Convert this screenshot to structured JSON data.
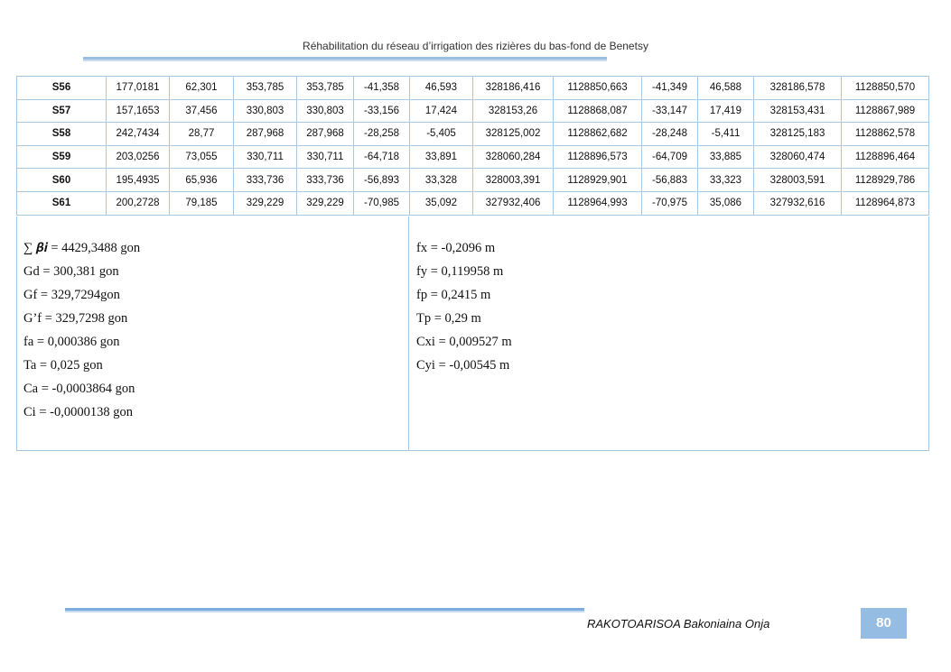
{
  "header": {
    "title": "Réhabilitation du réseau d’irrigation des rizières du bas-fond de Benetsy"
  },
  "table": {
    "rows": [
      [
        "S56",
        "177,0181",
        "62,301",
        "353,785",
        "353,785",
        "-41,358",
        "46,593",
        "328186,416",
        "1128850,663",
        "-41,349",
        "46,588",
        "328186,578",
        "1128850,570"
      ],
      [
        "S57",
        "157,1653",
        "37,456",
        "330,803",
        "330,803",
        "-33,156",
        "17,424",
        "328153,26",
        "1128868,087",
        "-33,147",
        "17,419",
        "328153,431",
        "1128867,989"
      ],
      [
        "S58",
        "242,7434",
        "28,77",
        "287,968",
        "287,968",
        "-28,258",
        "-5,405",
        "328125,002",
        "1128862,682",
        "-28,248",
        "-5,411",
        "328125,183",
        "1128862,578"
      ],
      [
        "S59",
        "203,0256",
        "73,055",
        "330,711",
        "330,711",
        "-64,718",
        "33,891",
        "328060,284",
        "1128896,573",
        "-64,709",
        "33,885",
        "328060,474",
        "1128896,464"
      ],
      [
        "S60",
        "195,4935",
        "65,936",
        "333,736",
        "333,736",
        "-56,893",
        "33,328",
        "328003,391",
        "1128929,901",
        "-56,883",
        "33,323",
        "328003,591",
        "1128929,786"
      ],
      [
        "S61",
        "200,2728",
        "79,185",
        "329,229",
        "329,229",
        "-70,985",
        "35,092",
        "327932,406",
        "1128964,993",
        "-70,975",
        "35,086",
        "327932,616",
        "1128964,873"
      ]
    ]
  },
  "summary": {
    "left": [
      "∑ 𝜷𝒊 = 4429,3488 gon",
      "Gd = 300,381 gon",
      "Gf = 329,7294gon",
      "G’f = 329,7298 gon",
      "fa = 0,000386 gon",
      "Ta = 0,025 gon",
      "Ca = -0,0003864 gon",
      "Ci = -0,0000138 gon"
    ],
    "right": [
      "fx = -0,2096 m",
      "fy = 0,119958 m",
      "fp = 0,2415 m",
      "Tp = 0,29 m",
      "Cxi = 0,009527 m",
      "Cyi = -0,00545 m"
    ]
  },
  "footer": {
    "author": "RAKOTOARISOA Bakoniaina Onja",
    "page": "80"
  }
}
